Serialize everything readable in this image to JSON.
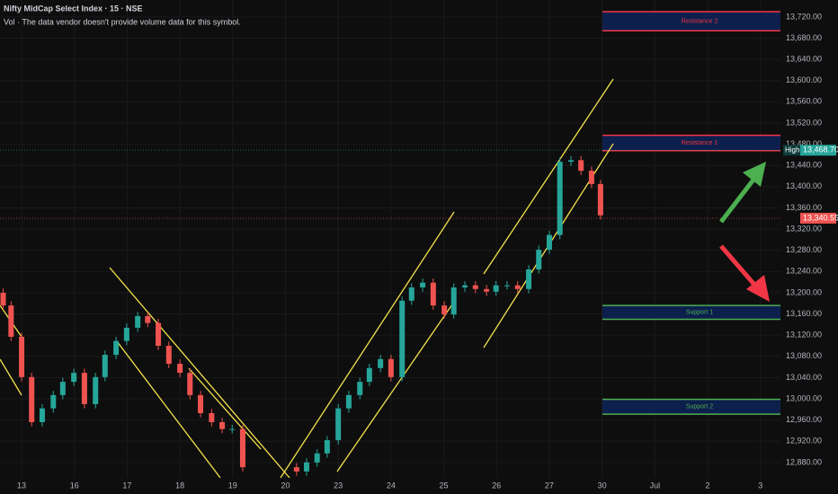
{
  "chart_data": {
    "type": "candlestick",
    "title": "Nifty MidCap Select Index · 15 · NSE",
    "subtitle": "Vol · The data vendor doesn't provide volume data for this symbol.",
    "xlim": [
      -0.41,
      14.38
    ],
    "xticks": [
      {
        "value": 0,
        "label": "13"
      },
      {
        "value": 1,
        "label": "16"
      },
      {
        "value": 2,
        "label": "17"
      },
      {
        "value": 3,
        "label": "18"
      },
      {
        "value": 4,
        "label": "19"
      },
      {
        "value": 5,
        "label": "20"
      },
      {
        "value": 6,
        "label": "23"
      },
      {
        "value": 7,
        "label": "24"
      },
      {
        "value": 8,
        "label": "25"
      },
      {
        "value": 9,
        "label": "26"
      },
      {
        "value": 10,
        "label": "27"
      },
      {
        "value": 11,
        "label": "30"
      },
      {
        "value": 12,
        "label": "Jul"
      },
      {
        "value": 13,
        "label": "2"
      },
      {
        "value": 14,
        "label": "3"
      }
    ],
    "ylim": [
      12851,
      13752
    ],
    "yticks": [
      {
        "value": 12880,
        "label": "12,880.00"
      },
      {
        "value": 12920,
        "label": "12,920.00"
      },
      {
        "value": 12960,
        "label": "12,960.00"
      },
      {
        "value": 13000,
        "label": "13,000.00"
      },
      {
        "value": 13040,
        "label": "13,040.00"
      },
      {
        "value": 13080,
        "label": "13,080.00"
      },
      {
        "value": 13120,
        "label": "13,120.00"
      },
      {
        "value": 13160,
        "label": "13,160.00"
      },
      {
        "value": 13200,
        "label": "13,200.00"
      },
      {
        "value": 13240,
        "label": "13,240.00"
      },
      {
        "value": 13280,
        "label": "13,280.00"
      },
      {
        "value": 13320,
        "label": "13,320.00"
      },
      {
        "value": 13360,
        "label": "13,360.00"
      },
      {
        "value": 13400,
        "label": "13,400.00"
      },
      {
        "value": 13440,
        "label": "13,440.00"
      },
      {
        "value": 13480,
        "label": "13,480.00"
      },
      {
        "value": 13520,
        "label": "13,520.00"
      },
      {
        "value": 13560,
        "label": "13,560.00"
      },
      {
        "value": 13600,
        "label": "13,600.00"
      },
      {
        "value": 13640,
        "label": "13,640.00"
      },
      {
        "value": 13680,
        "label": "13,680.00"
      },
      {
        "value": 13720,
        "label": "13,720.00"
      }
    ],
    "up_color": "#26a69a",
    "down_color": "#ef5350",
    "x": [
      -0.35,
      -0.2,
      0,
      0.19,
      0.39,
      0.6,
      0.78,
      0.99,
      1.19,
      1.4,
      1.58,
      1.79,
      1.99,
      2.2,
      2.39,
      2.59,
      2.79,
      3,
      3.19,
      3.39,
      3.6,
      3.8,
      3.99,
      4.19,
      5.21,
      5.4,
      5.6,
      5.79,
      6,
      6.2,
      6.41,
      6.59,
      6.8,
      7,
      7.21,
      7.39,
      7.6,
      7.8,
      8.01,
      8.19,
      8.4,
      8.6,
      8.81,
      8.99,
      9.2,
      9.4,
      9.61,
      9.8,
      10,
      10.2,
      10.41,
      10.6,
      10.8,
      10.97
    ],
    "open": [
      13200,
      13176,
      13117,
      13041,
      12956,
      12982,
      13007,
      13032,
      13049,
      12990,
      13041,
      13083,
      13109,
      13134,
      13156,
      13143,
      13100,
      13066,
      13049,
      13007,
      12973,
      12956,
      12943,
      12943,
      12871,
      12863,
      12880,
      12897,
      12922,
      12982,
      13007,
      13032,
      13058,
      13075,
      13041,
      13185,
      13210,
      13219,
      13176,
      13159,
      13210,
      13214,
      13207,
      13202,
      13214,
      13214,
      13207,
      13244,
      13281,
      13309,
      13447,
      13450,
      13430,
      13405
    ],
    "high": [
      13208,
      13184,
      13125,
      13049,
      12990,
      13015,
      13040,
      13057,
      13057,
      13049,
      13091,
      13117,
      13142,
      13164,
      13164,
      13151,
      13108,
      13074,
      13057,
      13015,
      12981,
      12964,
      12951,
      12951,
      12879,
      12888,
      12905,
      12930,
      12990,
      13015,
      13040,
      13066,
      13083,
      13083,
      13193,
      13218,
      13227,
      13227,
      13184,
      13218,
      13222,
      13222,
      13215,
      13222,
      13222,
      13222,
      13252,
      13289,
      13317,
      13455,
      13458,
      13458,
      13438,
      13413
    ],
    "low": [
      13168,
      13109,
      13033,
      12948,
      12948,
      12974,
      12999,
      13024,
      12982,
      12982,
      13033,
      13075,
      13101,
      13126,
      13135,
      13092,
      13058,
      13041,
      12999,
      12965,
      12948,
      12935,
      12935,
      12863,
      12855,
      12855,
      12872,
      12889,
      12914,
      12974,
      12999,
      13024,
      13050,
      13033,
      13033,
      13177,
      13202,
      13168,
      13151,
      13151,
      13202,
      13199,
      13194,
      13194,
      13206,
      13199,
      13199,
      13236,
      13273,
      13301,
      13439,
      13422,
      13397,
      13338
    ],
    "close": [
      13176,
      13117,
      13041,
      12956,
      12982,
      13007,
      13032,
      13049,
      12990,
      13041,
      13083,
      13109,
      13134,
      13156,
      13143,
      13100,
      13066,
      13049,
      13007,
      12973,
      12956,
      12943,
      12943,
      12871,
      12863,
      12880,
      12897,
      12922,
      12982,
      13007,
      13032,
      13058,
      13075,
      13041,
      13185,
      13210,
      13219,
      13176,
      13159,
      13210,
      13214,
      13207,
      13202,
      13214,
      13214,
      13207,
      13244,
      13281,
      13309,
      13447,
      13450,
      13430,
      13405,
      13346
    ],
    "zones": [
      {
        "label": "Resistance 2",
        "low": 13694,
        "high": 13730,
        "color": "#f23645"
      },
      {
        "label": "Resistance 1",
        "low": 13468,
        "high": 13497,
        "color": "#f23645"
      },
      {
        "label": "Support 1",
        "low": 13150,
        "high": 13176,
        "color": "#4caf50"
      },
      {
        "label": "Support 2",
        "low": 12971,
        "high": 12999,
        "color": "#4caf50"
      }
    ],
    "markers": [
      {
        "name": "High",
        "value": 13468.7,
        "value_label": "13,468.70",
        "color": "#26a69a"
      },
      {
        "value": 13340.55,
        "value_label": "13,340.55",
        "color": "#ef5350"
      }
    ]
  }
}
